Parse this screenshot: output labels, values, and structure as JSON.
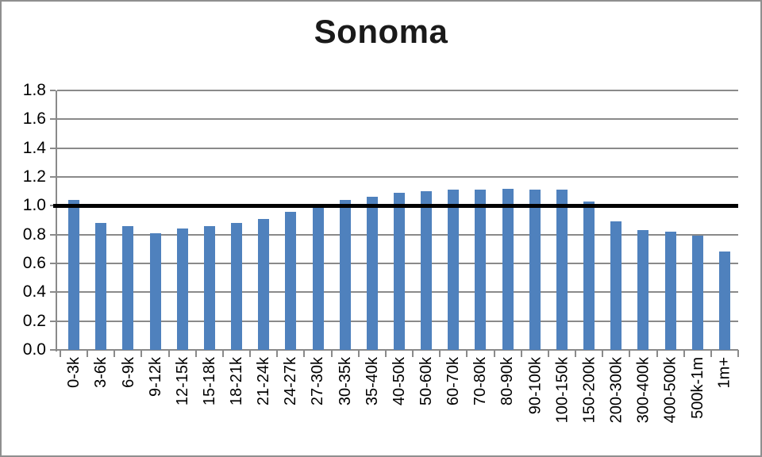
{
  "chart_data": {
    "type": "bar",
    "title": "Sonoma",
    "categories": [
      "0-3k",
      "3-6k",
      "6-9k",
      "9-12k",
      "12-15k",
      "15-18k",
      "18-21k",
      "21-24k",
      "24-27k",
      "27-30k",
      "30-35k",
      "35-40k",
      "40-50k",
      "50-60k",
      "60-70k",
      "70-80k",
      "80-90k",
      "90-100k",
      "100-150k",
      "150-200k",
      "200-300k",
      "300-400k",
      "400-500k",
      "500k-1m",
      "1m+"
    ],
    "values": [
      1.04,
      0.88,
      0.86,
      0.81,
      0.84,
      0.86,
      0.88,
      0.91,
      0.96,
      1.0,
      1.04,
      1.06,
      1.09,
      1.1,
      1.11,
      1.11,
      1.12,
      1.11,
      1.11,
      1.03,
      0.89,
      0.83,
      0.82,
      0.79,
      0.68
    ],
    "xlabel": "",
    "ylabel": "",
    "ylim": [
      0,
      1.8
    ],
    "ytick_step": 0.2,
    "ytick_labels": [
      "0.0",
      "0.2",
      "0.4",
      "0.6",
      "0.8",
      "1.0",
      "1.2",
      "1.4",
      "1.6",
      "1.8"
    ],
    "reference_line": {
      "value": 1.0,
      "color": "#000000"
    },
    "bar_color": "#4F81BD",
    "gridline_color": "#8A8A8A",
    "axis_color": "#8A8A8A",
    "grid": "horizontal-major",
    "legend": "none",
    "x_tick_rotation": -90
  }
}
